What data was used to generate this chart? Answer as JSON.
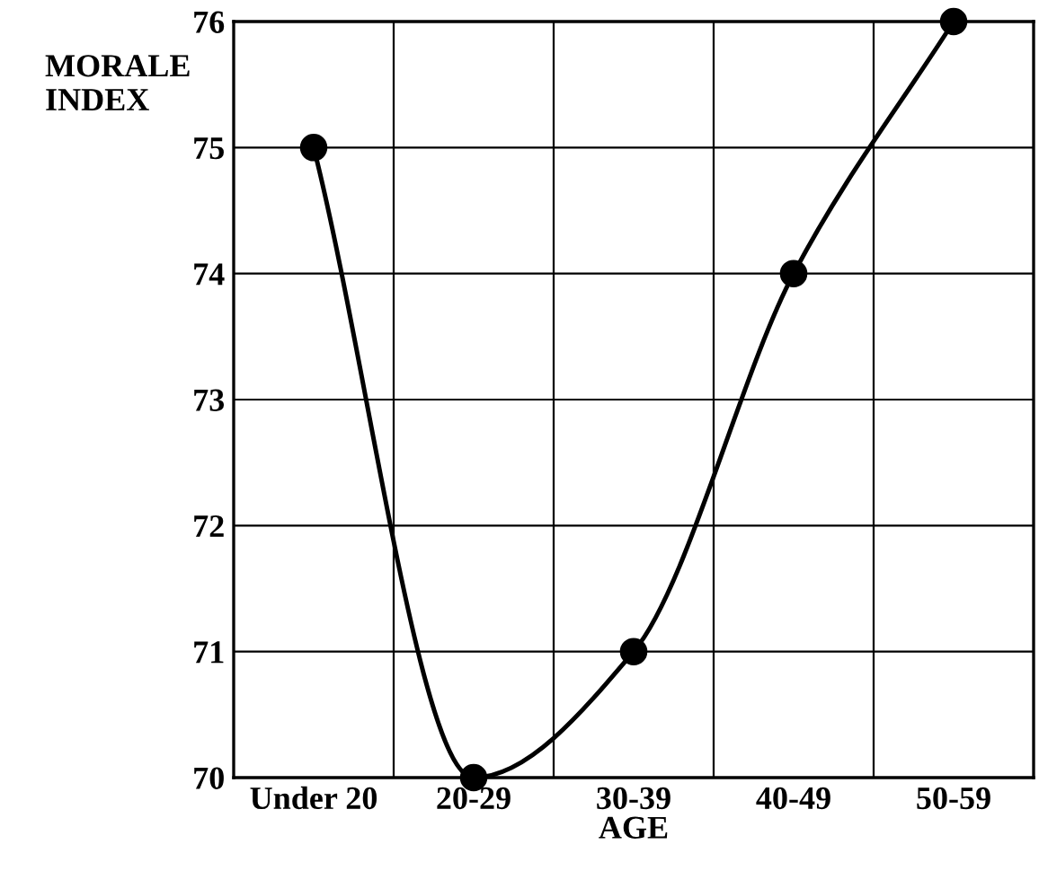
{
  "chart_data": {
    "type": "line",
    "xlabel": "AGE",
    "ylabel": "MORALE\nINDEX",
    "categories": [
      "Under 20",
      "20-29",
      "30-39",
      "40-49",
      "50-59"
    ],
    "series": [
      {
        "color": "#000000",
        "values": [
          75,
          70,
          71,
          74,
          76
        ]
      }
    ],
    "ylim": [
      70,
      76
    ],
    "yticks": [
      70,
      71,
      72,
      73,
      74,
      75,
      76
    ],
    "grid": true,
    "marker": "circle",
    "line_style": "solid",
    "legend": false
  }
}
